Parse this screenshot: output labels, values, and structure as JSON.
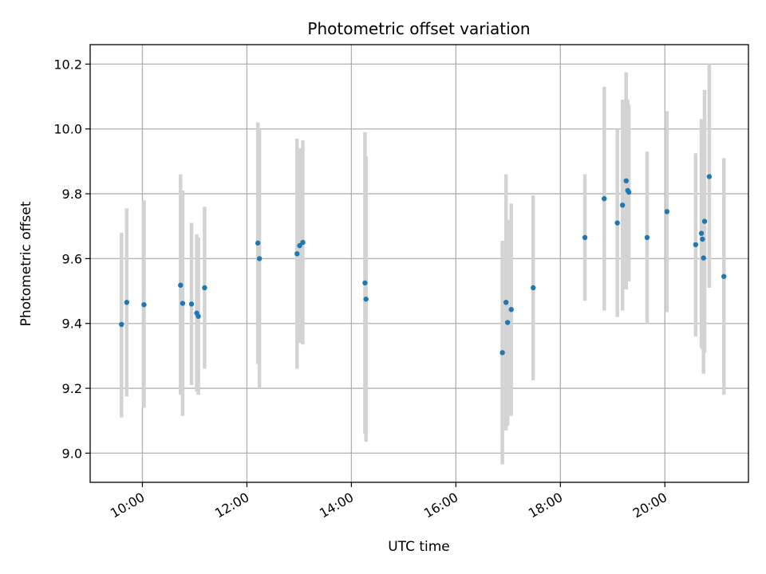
{
  "chart_data": {
    "type": "scatter",
    "title": "Photometric offset variation",
    "xlabel": "UTC time",
    "ylabel": "Photometric offset",
    "xlim_hours": [
      9.0,
      21.6
    ],
    "ylim": [
      8.91,
      10.26
    ],
    "x_ticks": [
      {
        "hour": 10,
        "label": "10:00"
      },
      {
        "hour": 12,
        "label": "12:00"
      },
      {
        "hour": 14,
        "label": "14:00"
      },
      {
        "hour": 16,
        "label": "16:00"
      },
      {
        "hour": 18,
        "label": "18:00"
      },
      {
        "hour": 20,
        "label": "20:00"
      }
    ],
    "y_ticks": [
      {
        "value": 9.0,
        "label": "9.0"
      },
      {
        "value": 9.2,
        "label": "9.2"
      },
      {
        "value": 9.4,
        "label": "9.4"
      },
      {
        "value": 9.6,
        "label": "9.6"
      },
      {
        "value": 9.8,
        "label": "9.8"
      },
      {
        "value": 10.0,
        "label": "10.0"
      },
      {
        "value": 10.2,
        "label": "10.2"
      }
    ],
    "grid": true,
    "marker_color": "#1f77b4",
    "errorbar_color": "#d3d3d3",
    "points": [
      {
        "t": 9.6,
        "y": 9.397,
        "err_low": 9.11,
        "err_high": 9.68
      },
      {
        "t": 9.7,
        "y": 9.465,
        "err_low": 9.175,
        "err_high": 9.755
      },
      {
        "t": 10.03,
        "y": 9.458,
        "err_low": 9.14,
        "err_high": 9.78
      },
      {
        "t": 10.73,
        "y": 9.518,
        "err_low": 9.18,
        "err_high": 9.86
      },
      {
        "t": 10.77,
        "y": 9.462,
        "err_low": 9.115,
        "err_high": 9.81
      },
      {
        "t": 10.94,
        "y": 9.46,
        "err_low": 9.21,
        "err_high": 9.71
      },
      {
        "t": 11.04,
        "y": 9.432,
        "err_low": 9.19,
        "err_high": 9.675
      },
      {
        "t": 11.07,
        "y": 9.422,
        "err_low": 9.18,
        "err_high": 9.665
      },
      {
        "t": 11.19,
        "y": 9.51,
        "err_low": 9.26,
        "err_high": 9.76
      },
      {
        "t": 12.21,
        "y": 9.648,
        "err_low": 9.275,
        "err_high": 10.02
      },
      {
        "t": 12.24,
        "y": 9.6,
        "err_low": 9.2,
        "err_high": 10.0
      },
      {
        "t": 12.96,
        "y": 9.615,
        "err_low": 9.26,
        "err_high": 9.97
      },
      {
        "t": 13.01,
        "y": 9.64,
        "err_low": 9.34,
        "err_high": 9.94
      },
      {
        "t": 13.07,
        "y": 9.65,
        "err_low": 9.335,
        "err_high": 9.965
      },
      {
        "t": 14.26,
        "y": 9.525,
        "err_low": 9.06,
        "err_high": 9.99
      },
      {
        "t": 14.28,
        "y": 9.475,
        "err_low": 9.035,
        "err_high": 9.915
      },
      {
        "t": 16.89,
        "y": 9.31,
        "err_low": 8.965,
        "err_high": 9.655
      },
      {
        "t": 16.96,
        "y": 9.465,
        "err_low": 9.07,
        "err_high": 9.86
      },
      {
        "t": 16.99,
        "y": 9.403,
        "err_low": 9.085,
        "err_high": 9.72
      },
      {
        "t": 17.06,
        "y": 9.443,
        "err_low": 9.115,
        "err_high": 9.77
      },
      {
        "t": 17.48,
        "y": 9.51,
        "err_low": 9.225,
        "err_high": 9.795
      },
      {
        "t": 18.47,
        "y": 9.665,
        "err_low": 9.47,
        "err_high": 9.86
      },
      {
        "t": 18.84,
        "y": 9.785,
        "err_low": 9.44,
        "err_high": 10.13
      },
      {
        "t": 19.09,
        "y": 9.71,
        "err_low": 9.42,
        "err_high": 10.0
      },
      {
        "t": 19.19,
        "y": 9.765,
        "err_low": 9.44,
        "err_high": 10.09
      },
      {
        "t": 19.26,
        "y": 9.84,
        "err_low": 9.505,
        "err_high": 10.175
      },
      {
        "t": 19.29,
        "y": 9.81,
        "err_low": 9.54,
        "err_high": 10.09
      },
      {
        "t": 19.31,
        "y": 9.805,
        "err_low": 9.53,
        "err_high": 10.075
      },
      {
        "t": 19.66,
        "y": 9.665,
        "err_low": 9.4,
        "err_high": 9.93
      },
      {
        "t": 20.04,
        "y": 9.745,
        "err_low": 9.435,
        "err_high": 10.055
      },
      {
        "t": 20.59,
        "y": 9.643,
        "err_low": 9.36,
        "err_high": 9.925
      },
      {
        "t": 20.7,
        "y": 9.678,
        "err_low": 9.325,
        "err_high": 10.03
      },
      {
        "t": 20.72,
        "y": 9.66,
        "err_low": 9.32,
        "err_high": 10.0
      },
      {
        "t": 20.74,
        "y": 9.602,
        "err_low": 9.245,
        "err_high": 9.96
      },
      {
        "t": 20.76,
        "y": 9.715,
        "err_low": 9.31,
        "err_high": 10.12
      },
      {
        "t": 20.85,
        "y": 9.853,
        "err_low": 9.51,
        "err_high": 10.2
      },
      {
        "t": 21.13,
        "y": 9.545,
        "err_low": 9.18,
        "err_high": 9.91
      }
    ]
  }
}
